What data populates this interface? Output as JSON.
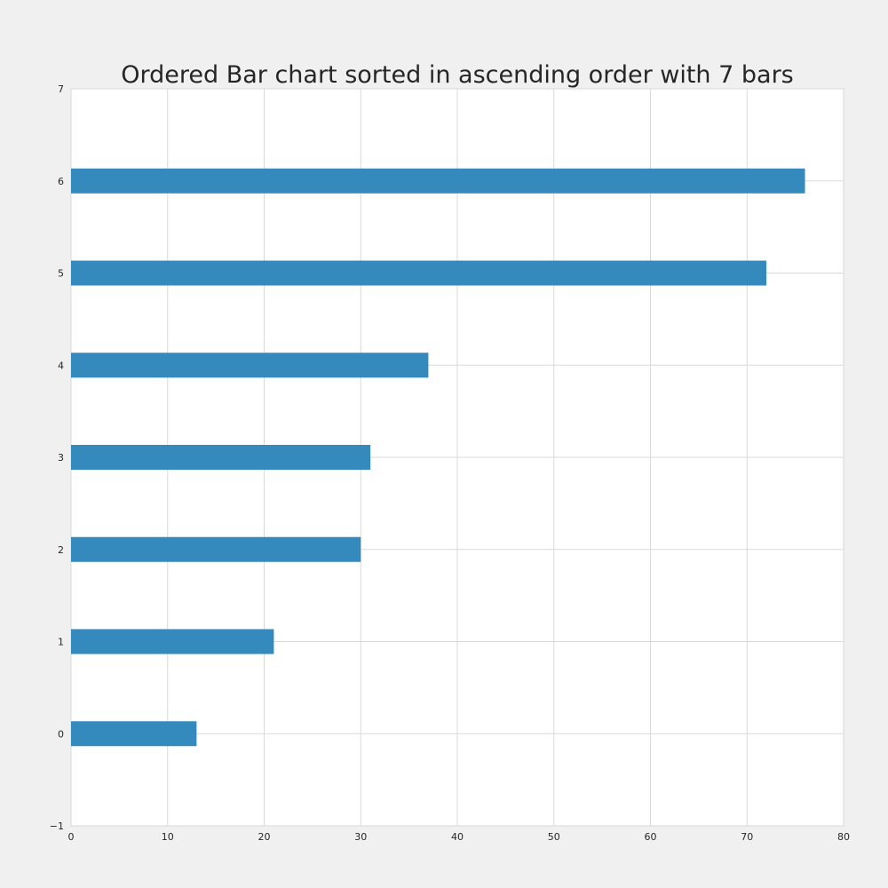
{
  "chart_data": {
    "type": "bar",
    "orientation": "horizontal",
    "title": "Ordered Bar chart sorted in ascending order with 7 bars",
    "xlabel": "",
    "ylabel": "",
    "categories": [
      0,
      1,
      2,
      3,
      4,
      5,
      6
    ],
    "values": [
      13,
      21,
      30,
      31,
      37,
      72,
      76
    ],
    "xlim": [
      0,
      80
    ],
    "ylim": [
      -1,
      7
    ],
    "x_ticks": [
      "0",
      "10",
      "20",
      "30",
      "40",
      "50",
      "60",
      "70",
      "80"
    ],
    "y_ticks": [
      "−1",
      "0",
      "1",
      "2",
      "3",
      "4",
      "5",
      "6",
      "7"
    ],
    "grid": true,
    "legend": "none",
    "bar_color": "#348abd",
    "background_color": "#f0f0f0",
    "plot_background_color": "#ffffff"
  }
}
